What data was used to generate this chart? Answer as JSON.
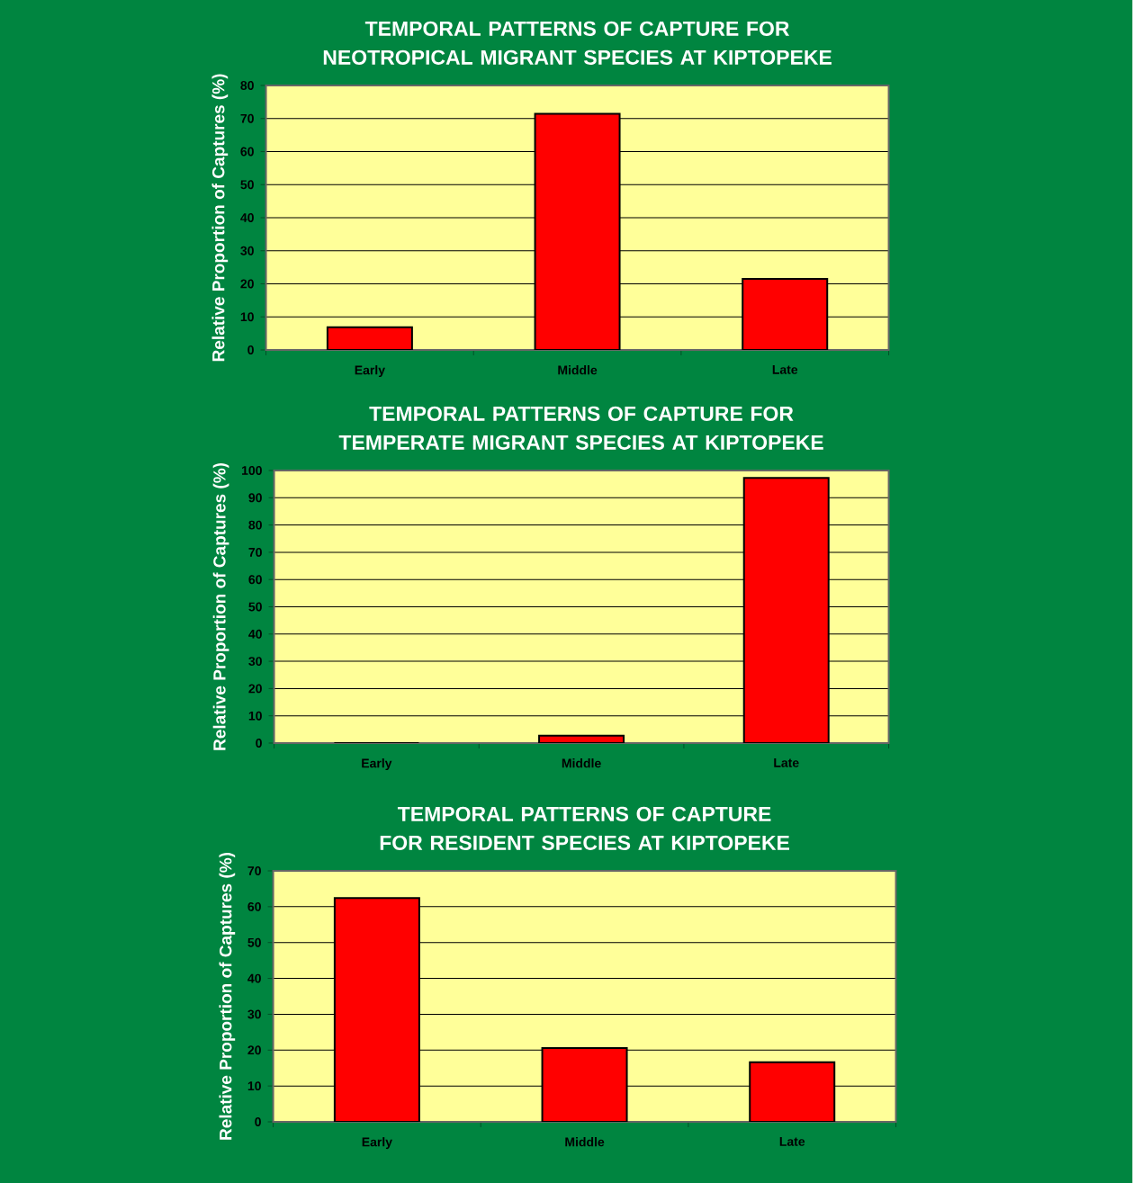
{
  "chart_data": [
    {
      "type": "bar",
      "title": "TEMPORAL PATTERNS OF CAPTURE FOR NEOTROPICAL MIGRANT SPECIES AT KIPTOPEKE",
      "ylabel": "Relative Proportion of Captures (%)",
      "categories": [
        "Early",
        "Middle",
        "Late"
      ],
      "values": [
        6.9,
        71.4,
        21.5
      ],
      "color": "#ff0000",
      "ylim": [
        0,
        80
      ],
      "yticks": [
        0,
        10,
        20,
        30,
        40,
        50,
        60,
        70,
        80
      ],
      "grid": "y"
    },
    {
      "type": "bar",
      "title": "TEMPORAL PATTERNS OF CAPTURE FOR TEMPERATE MIGRANT SPECIES AT KIPTOPEKE",
      "ylabel": "Relative Proportion of Captures (%)",
      "categories": [
        "Early",
        "Middle",
        "Late"
      ],
      "values": [
        0,
        2.7,
        97.3
      ],
      "color": "#ff0000",
      "ylim": [
        0,
        100
      ],
      "yticks": [
        0,
        10,
        20,
        30,
        40,
        50,
        60,
        70,
        80,
        90,
        100
      ],
      "grid": "y"
    },
    {
      "type": "bar",
      "title": "TEMPORAL PATTERNS OF CAPTURE FOR RESIDENT SPECIES AT KIPTOPEKE",
      "ylabel": "Relative Proportion of Captures (%)",
      "categories": [
        "Early",
        "Middle",
        "Late"
      ],
      "values": [
        62.4,
        20.6,
        16.6
      ],
      "color": "#ff0000",
      "ylim": [
        0,
        70
      ],
      "yticks": [
        0,
        10,
        20,
        30,
        40,
        50,
        60,
        70
      ],
      "grid": "y"
    }
  ]
}
